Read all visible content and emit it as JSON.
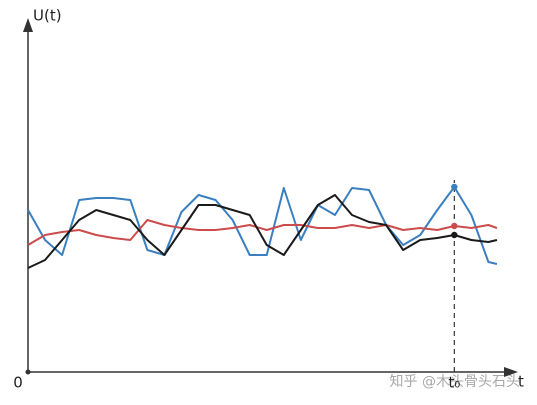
{
  "chart_data": {
    "type": "line",
    "ylabel": "U(t)",
    "xlabel": "t",
    "watermark": "知乎 @木头骨头石头",
    "x": [
      0,
      0.4,
      0.8,
      1.2,
      1.6,
      2.0,
      2.4,
      2.8,
      3.2,
      3.6,
      4.0,
      4.4,
      4.8,
      5.2,
      5.6,
      6.0,
      6.4,
      6.8,
      7.2,
      7.6,
      8.0,
      8.4,
      8.8,
      9.2,
      9.6,
      10.0,
      10.4,
      10.8,
      11.0
    ],
    "series": [
      {
        "name": "blue",
        "color": "#3a7fc0",
        "values": [
          162,
          132,
          117,
          172,
          174,
          174,
          172,
          122,
          117,
          160,
          177,
          172,
          152,
          117,
          117,
          184,
          132,
          167,
          157,
          184,
          182,
          147,
          127,
          137,
          162,
          185,
          157,
          110,
          108
        ]
      },
      {
        "name": "red",
        "color": "#cc4b4b",
        "values": [
          127,
          137,
          140,
          142,
          137,
          134,
          132,
          152,
          147,
          144,
          142,
          142,
          144,
          147,
          142,
          147,
          147,
          144,
          144,
          147,
          144,
          147,
          142,
          144,
          142,
          146,
          144,
          147,
          144
        ]
      },
      {
        "name": "black",
        "color": "#1a1a1a",
        "values": [
          104,
          112,
          132,
          152,
          162,
          157,
          152,
          132,
          117,
          142,
          167,
          167,
          162,
          157,
          127,
          117,
          142,
          167,
          177,
          157,
          150,
          147,
          122,
          132,
          134,
          137,
          132,
          130,
          132
        ]
      }
    ],
    "xlim": [
      0,
      11.4
    ],
    "ylim": [
      0,
      352
    ],
    "xticks": [
      0,
      {
        "value": 10,
        "label": "t₀"
      }
    ]
  }
}
